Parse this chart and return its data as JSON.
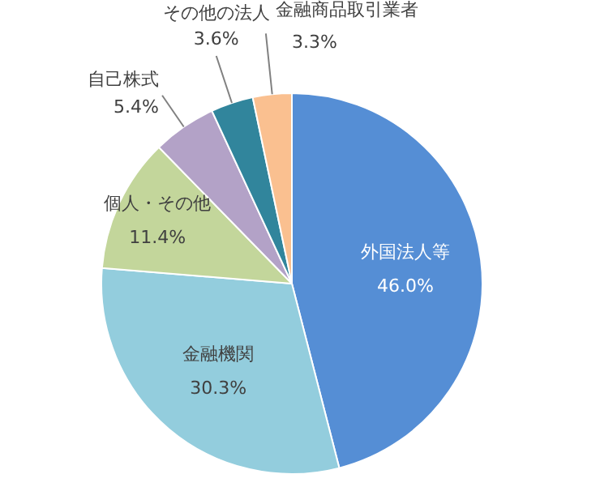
{
  "chart_data": {
    "type": "pie",
    "categories": [
      "外国法人等",
      "金融機関",
      "個人・その他",
      "自己株式",
      "その他の法人",
      "金融商品取引業者"
    ],
    "values": [
      46.0,
      30.3,
      11.4,
      5.4,
      3.6,
      3.3
    ],
    "colors": [
      "#558ed5",
      "#93cddd",
      "#c3d69b",
      "#b3a2c7",
      "#31859c",
      "#fac090"
    ],
    "value_labels": [
      "46.0%",
      "30.3%",
      "11.4%",
      "5.4%",
      "3.6%",
      "3.3%"
    ],
    "legend": false
  }
}
